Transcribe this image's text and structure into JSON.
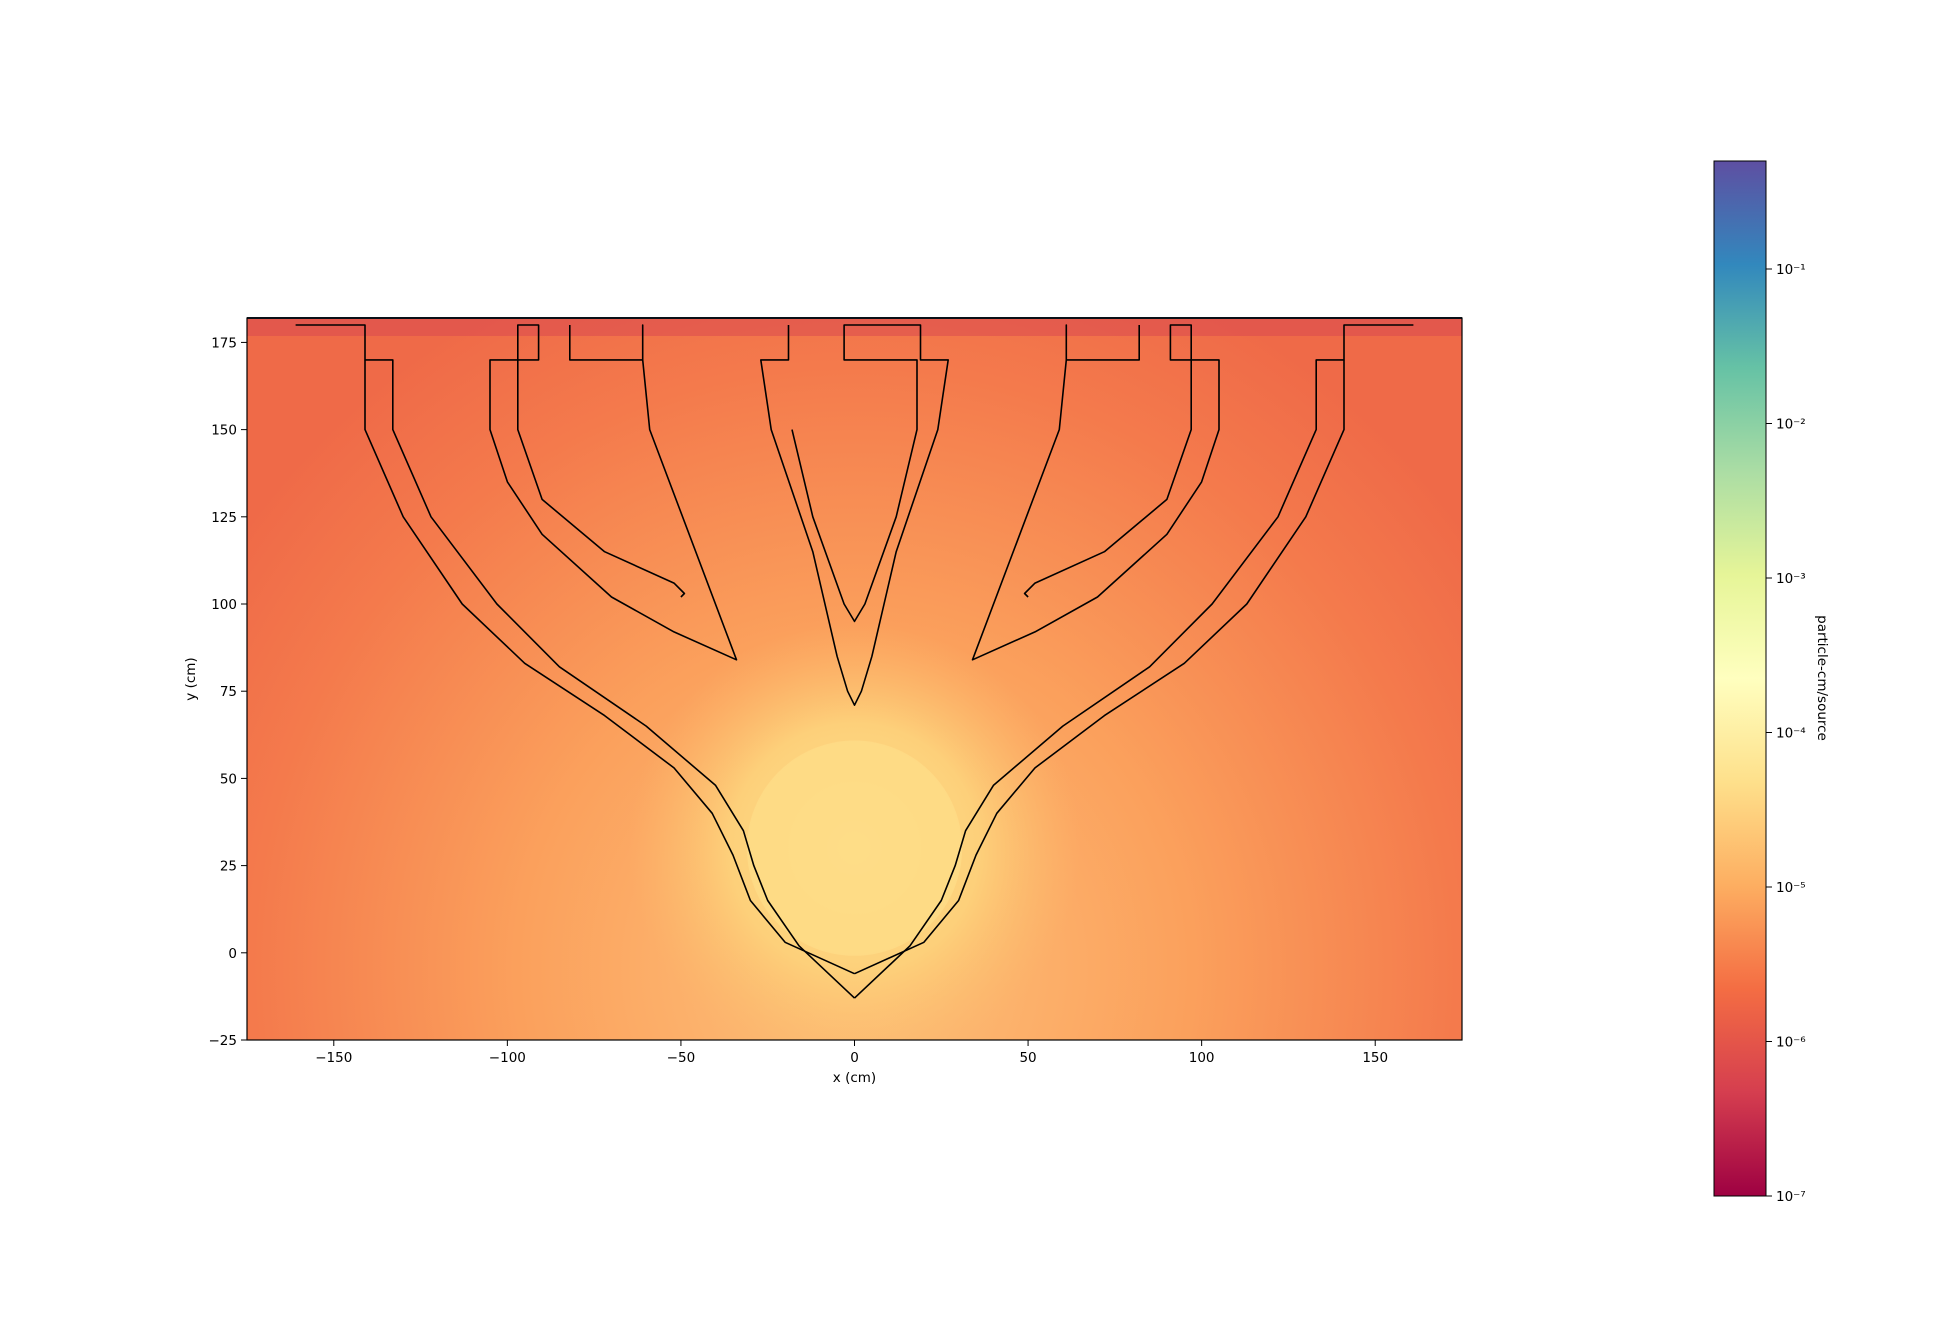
{
  "chart_data": {
    "type": "heatmap",
    "title": "",
    "xlabel": "x (cm)",
    "ylabel": "y (cm)",
    "xlim": [
      -175,
      175
    ],
    "ylim": [
      -25,
      182
    ],
    "x_ticks": [
      -150,
      -100,
      -50,
      0,
      50,
      100,
      150
    ],
    "x_tick_labels": [
      "−150",
      "−100",
      "−50",
      "0",
      "50",
      "100",
      "150"
    ],
    "y_ticks": [
      -25,
      0,
      25,
      50,
      75,
      100,
      125,
      150,
      175
    ],
    "y_tick_labels": [
      "−25",
      "0",
      "25",
      "50",
      "75",
      "100",
      "125",
      "150",
      "175"
    ],
    "colormap": "Spectral",
    "colorbar": {
      "label": "particle-cm/source",
      "scale": "log",
      "range": [
        1e-07,
        0.5
      ],
      "ticks": [
        1e-07,
        1e-06,
        1e-05,
        0.0001,
        0.001,
        0.01,
        0.1
      ],
      "tick_labels": [
        "10⁻⁷",
        "10⁻⁶",
        "10⁻⁵",
        "10⁻⁴",
        "10⁻³",
        "10⁻²",
        "10⁻¹"
      ],
      "colors": [
        "#9e0142",
        "#d53e4f",
        "#f46d43",
        "#fdae61",
        "#fee08b",
        "#ffffbf",
        "#e6f598",
        "#abdda4",
        "#66c2a5",
        "#3288bd",
        "#5e4fa2"
      ]
    },
    "field": {
      "source_center": [
        0,
        30
      ],
      "source_radius": 31,
      "source_value": 5e-05,
      "background_low": 1.5e-06,
      "background_high": 1e-05
    },
    "geometry_outlines": [
      {
        "name": "left-outer-arm",
        "x": [
          -161,
          -141,
          -141,
          -133,
          -133,
          -122,
          -103,
          -85,
          -60,
          -40,
          -32,
          -29,
          -25,
          -16,
          0
        ],
        "y": [
          180,
          180,
          170,
          170,
          150,
          125,
          100,
          82,
          65,
          48,
          35,
          25,
          15,
          2,
          -13
        ]
      },
      {
        "name": "left-inner-arm",
        "x": [
          -141,
          -141,
          -130,
          -113,
          -95,
          -72,
          -52,
          -41,
          -35,
          -30,
          -20,
          0
        ],
        "y": [
          170,
          150,
          125,
          100,
          83,
          68,
          53,
          40,
          28,
          15,
          3,
          -6
        ]
      },
      {
        "name": "right-outer-arm",
        "x": [
          161,
          141,
          141,
          133,
          133,
          122,
          103,
          85,
          60,
          40,
          32,
          29,
          25,
          16,
          0
        ],
        "y": [
          180,
          180,
          170,
          170,
          150,
          125,
          100,
          82,
          65,
          48,
          35,
          25,
          15,
          2,
          -13
        ]
      },
      {
        "name": "right-inner-arm",
        "x": [
          141,
          141,
          130,
          113,
          95,
          72,
          52,
          41,
          35,
          30,
          20,
          0
        ],
        "y": [
          170,
          150,
          125,
          100,
          83,
          68,
          53,
          40,
          28,
          15,
          3,
          -6
        ]
      },
      {
        "name": "left-branch",
        "x": [
          -82,
          -82,
          -61,
          -61,
          -61,
          -59,
          -34,
          -52,
          -70,
          -90,
          -100,
          -105,
          -105,
          -97,
          -97,
          -91,
          -91,
          -97,
          -97,
          -90,
          -72,
          -52,
          -49,
          -50
        ],
        "y": [
          180,
          170,
          170,
          180,
          170,
          150,
          84,
          92,
          102,
          120,
          135,
          150,
          170,
          170,
          180,
          180,
          170,
          170,
          150,
          130,
          115,
          106,
          103,
          102
        ]
      },
      {
        "name": "right-branch",
        "x": [
          82,
          82,
          61,
          61,
          61,
          59,
          34,
          52,
          70,
          90,
          100,
          105,
          105,
          97,
          97,
          91,
          91,
          97,
          97,
          90,
          72,
          52,
          49,
          50
        ],
        "y": [
          180,
          170,
          170,
          180,
          170,
          150,
          84,
          92,
          102,
          120,
          135,
          150,
          170,
          170,
          180,
          180,
          170,
          170,
          150,
          130,
          115,
          106,
          103,
          102
        ]
      },
      {
        "name": "center-branch",
        "x": [
          -19,
          -19,
          -27,
          -27,
          -24,
          -12,
          -5,
          -2,
          0,
          2,
          5,
          12,
          24,
          27,
          27,
          19,
          19,
          -3,
          -3,
          18,
          18,
          18,
          12,
          3,
          0,
          -3,
          -12,
          -18
        ],
        "y": [
          180,
          170,
          170,
          170,
          150,
          115,
          85,
          75,
          71,
          75,
          85,
          115,
          150,
          170,
          170,
          170,
          180,
          180,
          170,
          170,
          170,
          150,
          125,
          100,
          95,
          100,
          125,
          150
        ]
      }
    ]
  }
}
